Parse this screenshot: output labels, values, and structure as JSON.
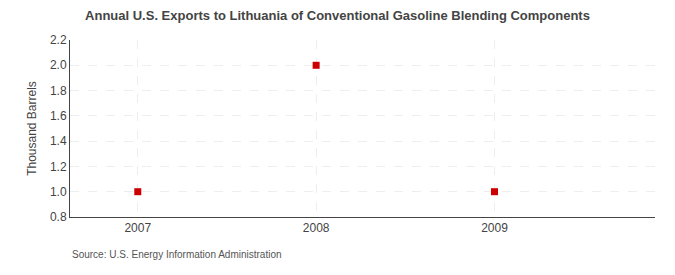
{
  "chart_data": {
    "type": "scatter",
    "title": "Annual U.S. Exports to Lithuania of Conventional Gasoline Blending Components",
    "ylabel": "Thousand Barrels",
    "annotations": [
      "Source: U.S. Energy Information Administration"
    ],
    "x": [
      2007,
      2008,
      2009
    ],
    "values": [
      1.0,
      2.0,
      1.0
    ],
    "color": "#CC0000",
    "marker": "square",
    "xlim": [
      2006.62,
      2009.9
    ],
    "ylim": [
      0.8,
      2.2
    ],
    "xticks": [
      2007,
      2008,
      2009
    ],
    "yticks": [
      0.8,
      {
        "value": 1.0,
        "label": "1.0"
      },
      1.2,
      1.4,
      1.6,
      1.8,
      {
        "value": 2.0,
        "label": "2.0"
      },
      2.2
    ],
    "grid": true
  }
}
